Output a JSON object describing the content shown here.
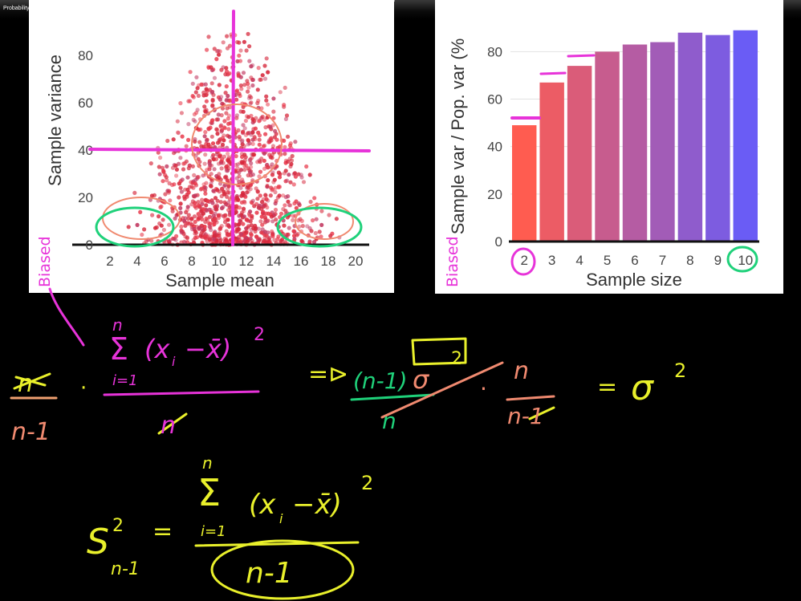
{
  "video": {
    "title": "Probability and Statistics | Khan Academy"
  },
  "scatter_chart": {
    "type": "scatter",
    "xlabel": "Sample mean",
    "ylabel": "Sample variance",
    "x_ticks": [
      "2",
      "4",
      "6",
      "8",
      "10",
      "12",
      "14",
      "16",
      "18",
      "20"
    ],
    "y_ticks": [
      "0",
      "20",
      "40",
      "60",
      "80"
    ],
    "xlim": [
      1,
      21
    ],
    "ylim": [
      0,
      95
    ],
    "grid": false,
    "point_color": "#d6283c"
  },
  "chart_data": {
    "type": "bar",
    "categories": [
      "2",
      "3",
      "4",
      "5",
      "6",
      "7",
      "8",
      "9",
      "10"
    ],
    "values": [
      49,
      67,
      74,
      80,
      83,
      84,
      88,
      87,
      89
    ],
    "xlabel": "Sample size",
    "ylabel": "Sample var / Pop. var (%",
    "y_ticks": [
      "0",
      "20",
      "40",
      "60",
      "80"
    ],
    "ylim": [
      0,
      95
    ],
    "grid": true,
    "color_start": "#ff5c50",
    "color_end": "#6a5cf5"
  },
  "annotations": {
    "biased_left": "Biased",
    "biased_right": "Biased",
    "ink_colors": {
      "magenta": "#e733d9",
      "green": "#1fd17a",
      "yellow": "#e9f02b",
      "salmon": "#f08a70"
    }
  }
}
